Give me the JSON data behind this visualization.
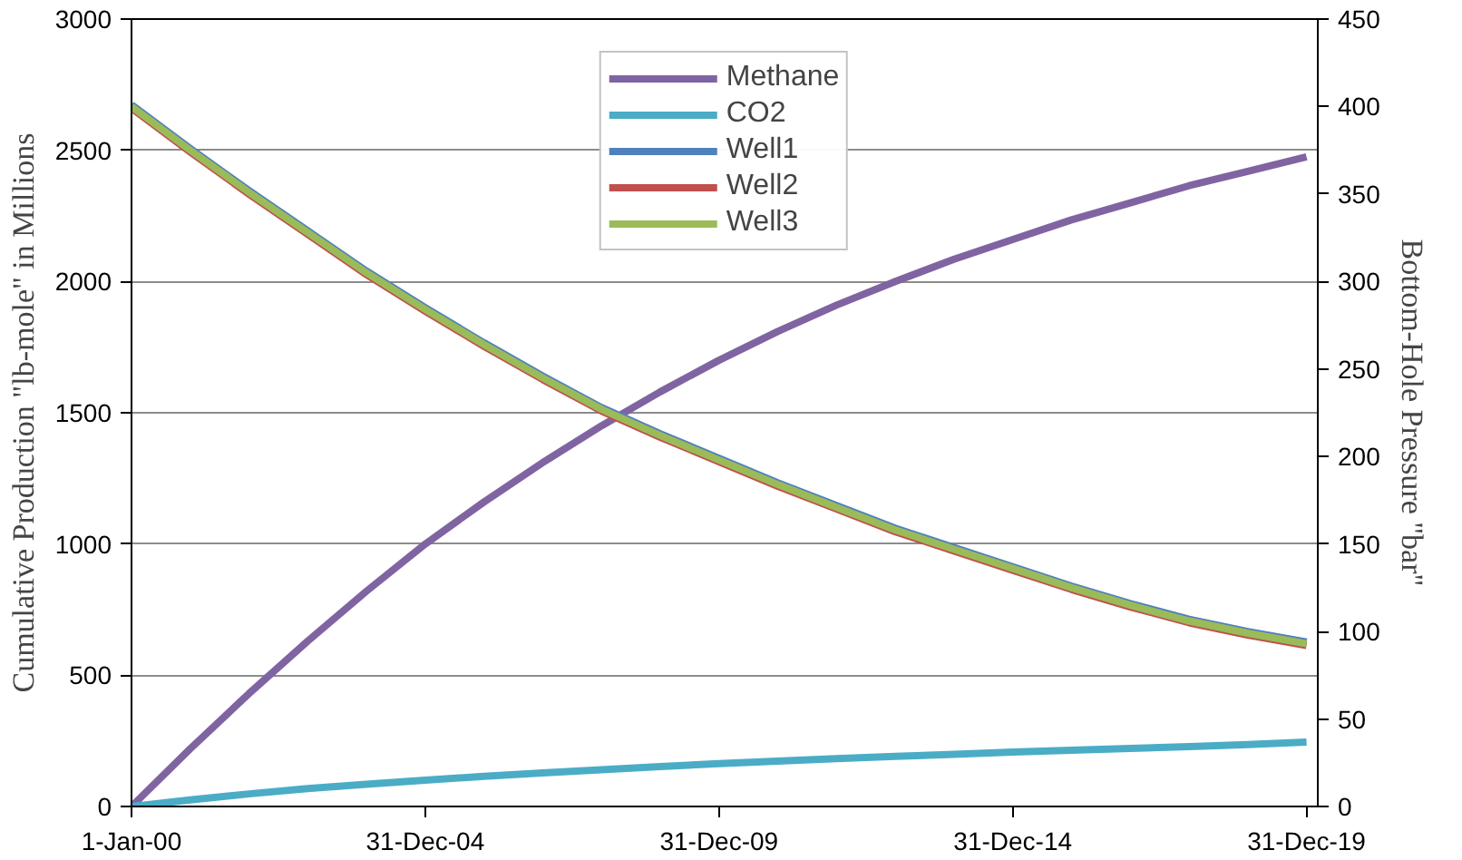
{
  "chart_data": {
    "type": "line",
    "xlabel": null,
    "ylabel": "Cumulative Production \"lb-mole\" in Millions",
    "y2label": "Bottom-Hole Pressure \"bar\"",
    "x": [
      "2000-01-01",
      "2000-12-31",
      "2001-12-31",
      "2002-12-31",
      "2003-12-31",
      "2004-12-31",
      "2005-12-31",
      "2006-12-31",
      "2007-12-31",
      "2008-12-31",
      "2009-12-31",
      "2010-12-31",
      "2011-12-31",
      "2012-12-31",
      "2013-12-31",
      "2014-12-31",
      "2015-12-31",
      "2016-12-31",
      "2017-12-31",
      "2018-12-31",
      "2019-12-31"
    ],
    "xlim": [
      "2000-01-01",
      "2020-03-10"
    ],
    "xticks": [
      {
        "value": "2000-01-01",
        "label": "1-Jan-00"
      },
      {
        "value": "2004-12-31",
        "label": "31-Dec-04"
      },
      {
        "value": "2009-12-31",
        "label": "31-Dec-09"
      },
      {
        "value": "2014-12-31",
        "label": "31-Dec-14"
      },
      {
        "value": "2019-12-31",
        "label": "31-Dec-19"
      }
    ],
    "ylim": [
      0,
      3000
    ],
    "yticks": [
      0,
      500,
      1000,
      1500,
      2000,
      2500,
      3000
    ],
    "y2lim": [
      0,
      450
    ],
    "y2ticks": [
      0,
      50,
      100,
      150,
      200,
      250,
      300,
      350,
      400,
      450
    ],
    "grid": "y",
    "legend": "top",
    "line_style": "solid",
    "series": [
      {
        "name": "Methane",
        "color": "#8064a2",
        "values": [
          0,
          220,
          430,
          630,
          820,
          1000,
          1160,
          1310,
          1450,
          1580,
          1700,
          1810,
          1910,
          2000,
          2085,
          2160,
          2235,
          2300,
          2365,
          2420,
          2475
        ]
      },
      {
        "name": "CO2",
        "color": "#4bacc6",
        "values": [
          0,
          25,
          48,
          68,
          85,
          100,
          115,
          128,
          140,
          152,
          163,
          173,
          182,
          191,
          199,
          207,
          214,
          221,
          228,
          236,
          245
        ]
      },
      {
        "name": "Well1",
        "color": "#4f81bd",
        "axis": "y2",
        "values": [
          401,
          376,
          352,
          329,
          306,
          285,
          265,
          246,
          228,
          213,
          199,
          185,
          172,
          159,
          148,
          137,
          126,
          116,
          107,
          100,
          94
        ]
      },
      {
        "name": "Well2",
        "color": "#c0504d",
        "axis": "y2",
        "values": [
          399,
          374,
          350,
          327,
          304,
          283,
          263,
          244,
          226,
          211,
          197,
          183,
          170,
          157,
          146,
          135,
          124,
          114,
          105,
          98,
          92
        ]
      },
      {
        "name": "Well3",
        "color": "#9bbb59",
        "axis": "y2",
        "values": [
          400,
          375,
          351,
          328,
          305,
          284,
          264,
          245,
          227,
          212,
          198,
          184,
          171,
          158,
          147,
          136,
          125,
          115,
          106,
          99,
          93
        ]
      }
    ]
  }
}
